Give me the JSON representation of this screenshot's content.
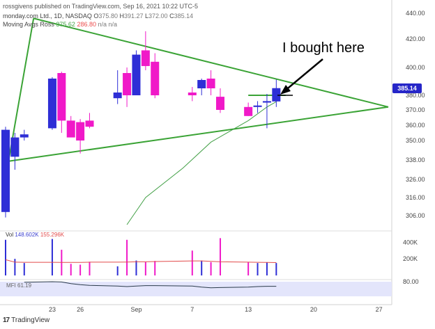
{
  "header": {
    "publisher": "rossgivens published on TradingView.com, Sep 16, 2021 10:22 UTC-5",
    "symbol": "monday.com Ltd., 1D, NASDAQ",
    "ohlc": {
      "o_label": "O",
      "o": "375.80",
      "h_label": "H",
      "h": "391.27",
      "l_label": "L",
      "l": "372.00",
      "c_label": "C",
      "c": "385.14"
    },
    "ma_label": "Moving Avgs Ross",
    "ma_a": "375.62",
    "ma_b": "286.80",
    "ma_c": "n/a",
    "ma_d": "n/a"
  },
  "annotation": "I bought here",
  "last_price_badge": "385.14",
  "volume_legend": {
    "label": "Vol",
    "a": "148.602K",
    "b": "155.296K"
  },
  "mfi_legend": {
    "label": "MFI",
    "value": "61.19"
  },
  "branding": "TradingView",
  "colors": {
    "up": "#2e2ed6",
    "down": "#f019c8",
    "trendline": "#3aa335",
    "ma": "#43a047",
    "vol_ma": "#e24b4b",
    "mfi_line": "#2a3a4a",
    "mfi_band": "#e3e5fb"
  },
  "chart_data": {
    "type": "candlestick",
    "price_axis": {
      "ticks": [
        306,
        316,
        326,
        338,
        350,
        360,
        370,
        380,
        400,
        420,
        440
      ],
      "tick_labels": [
        "306.00",
        "316.00",
        "326.00",
        "338.00",
        "350.00",
        "360.00",
        "370.00",
        "380.00",
        "400.00",
        "420.00",
        "440.00"
      ],
      "min": 300,
      "max": 445
    },
    "x_ticks": [
      {
        "label": "23",
        "date": "2021-08-23"
      },
      {
        "label": "26",
        "date": "2021-08-26"
      },
      {
        "label": "Sep",
        "date": "2021-09-01"
      },
      {
        "label": "7",
        "date": "2021-09-07"
      },
      {
        "label": "13",
        "date": "2021-09-13"
      },
      {
        "label": "20",
        "date": "2021-09-20"
      },
      {
        "label": "27",
        "date": "2021-09-27"
      }
    ],
    "candles": [
      {
        "date": "2021-08-18",
        "o": 308,
        "h": 359,
        "l": 305,
        "c": 357
      },
      {
        "date": "2021-08-19",
        "o": 340,
        "h": 355,
        "l": 332,
        "c": 352
      },
      {
        "date": "2021-08-20",
        "o": 352,
        "h": 357,
        "l": 350,
        "c": 354
      },
      {
        "date": "2021-08-23",
        "o": 358,
        "h": 393,
        "l": 357,
        "c": 392
      },
      {
        "date": "2021-08-24",
        "o": 396,
        "h": 397,
        "l": 355,
        "c": 363
      },
      {
        "date": "2021-08-25",
        "o": 363,
        "h": 366,
        "l": 353,
        "c": 352
      },
      {
        "date": "2021-08-26",
        "o": 362,
        "h": 364,
        "l": 342,
        "c": 350
      },
      {
        "date": "2021-08-27",
        "o": 363,
        "h": 368,
        "l": 358,
        "c": 359
      },
      {
        "date": "2021-08-30",
        "o": 378,
        "h": 398,
        "l": 374,
        "c": 382
      },
      {
        "date": "2021-08-31",
        "o": 396,
        "h": 400,
        "l": 372,
        "c": 380
      },
      {
        "date": "2021-09-01",
        "o": 380,
        "h": 412,
        "l": 380,
        "c": 409
      },
      {
        "date": "2021-09-02",
        "o": 412,
        "h": 426,
        "l": 398,
        "c": 401
      },
      {
        "date": "2021-09-03",
        "o": 404,
        "h": 410,
        "l": 378,
        "c": 380
      },
      {
        "date": "2021-09-07",
        "o": 382,
        "h": 386,
        "l": 376,
        "c": 380
      },
      {
        "date": "2021-09-08",
        "o": 385,
        "h": 392,
        "l": 380,
        "c": 391
      },
      {
        "date": "2021-09-09",
        "o": 392,
        "h": 398,
        "l": 380,
        "c": 385
      },
      {
        "date": "2021-09-10",
        "o": 379,
        "h": 385,
        "l": 368,
        "c": 370
      },
      {
        "date": "2021-09-13",
        "o": 372,
        "h": 375,
        "l": 366,
        "c": 366
      },
      {
        "date": "2021-09-14",
        "o": 372,
        "h": 376,
        "l": 368,
        "c": 373
      },
      {
        "date": "2021-09-15",
        "o": 375,
        "h": 381,
        "l": 358,
        "c": 376
      },
      {
        "date": "2021-09-16",
        "o": 375.8,
        "h": 391.27,
        "l": 372,
        "c": 385.14
      }
    ],
    "moving_average": [
      {
        "date": "2021-08-31",
        "value": 301
      },
      {
        "date": "2021-09-02",
        "value": 316
      },
      {
        "date": "2021-09-06",
        "value": 333
      },
      {
        "date": "2021-09-09",
        "value": 349
      },
      {
        "date": "2021-09-13",
        "value": 363
      },
      {
        "date": "2021-09-15",
        "value": 372
      },
      {
        "date": "2021-09-16",
        "value": 375.6
      }
    ],
    "trendlines": [
      {
        "from": {
          "date": "2021-08-18",
          "price": 327
        },
        "to": {
          "date": "2021-08-21",
          "price": 436
        }
      },
      {
        "from": {
          "date": "2021-08-21",
          "price": 436
        },
        "to": {
          "date": "2021-09-28",
          "price": 372
        }
      },
      {
        "from": {
          "date": "2021-08-18",
          "price": 337
        },
        "to": {
          "date": "2021-09-28",
          "price": 372
        }
      }
    ],
    "horizontal_segment": {
      "from_date": "2021-09-13",
      "to_date": "2021-09-17",
      "price": 380
    },
    "volume": {
      "ticks": [
        200,
        400
      ],
      "tick_labels": [
        "200K",
        "400K"
      ],
      "max": 470,
      "values_k": [
        430,
        200,
        150,
        440,
        310,
        140,
        130,
        165,
        110,
        430,
        180,
        160,
        175,
        300,
        180,
        160,
        450,
        160,
        150,
        160,
        150
      ],
      "moving_average_k": [
        190,
        160,
        158,
        158,
        157,
        157,
        157,
        160,
        160,
        162,
        165,
        165,
        168,
        175,
        175,
        170,
        165,
        160,
        158,
        157,
        155
      ]
    },
    "mfi": {
      "ticks": [
        80
      ],
      "tick_labels": [
        "80.00"
      ],
      "band": [
        20,
        80
      ],
      "values": [
        78,
        80,
        79,
        72,
        68,
        65,
        62,
        60,
        62,
        64,
        64,
        62,
        58,
        55,
        56,
        58,
        60,
        61,
        61.2
      ]
    }
  }
}
